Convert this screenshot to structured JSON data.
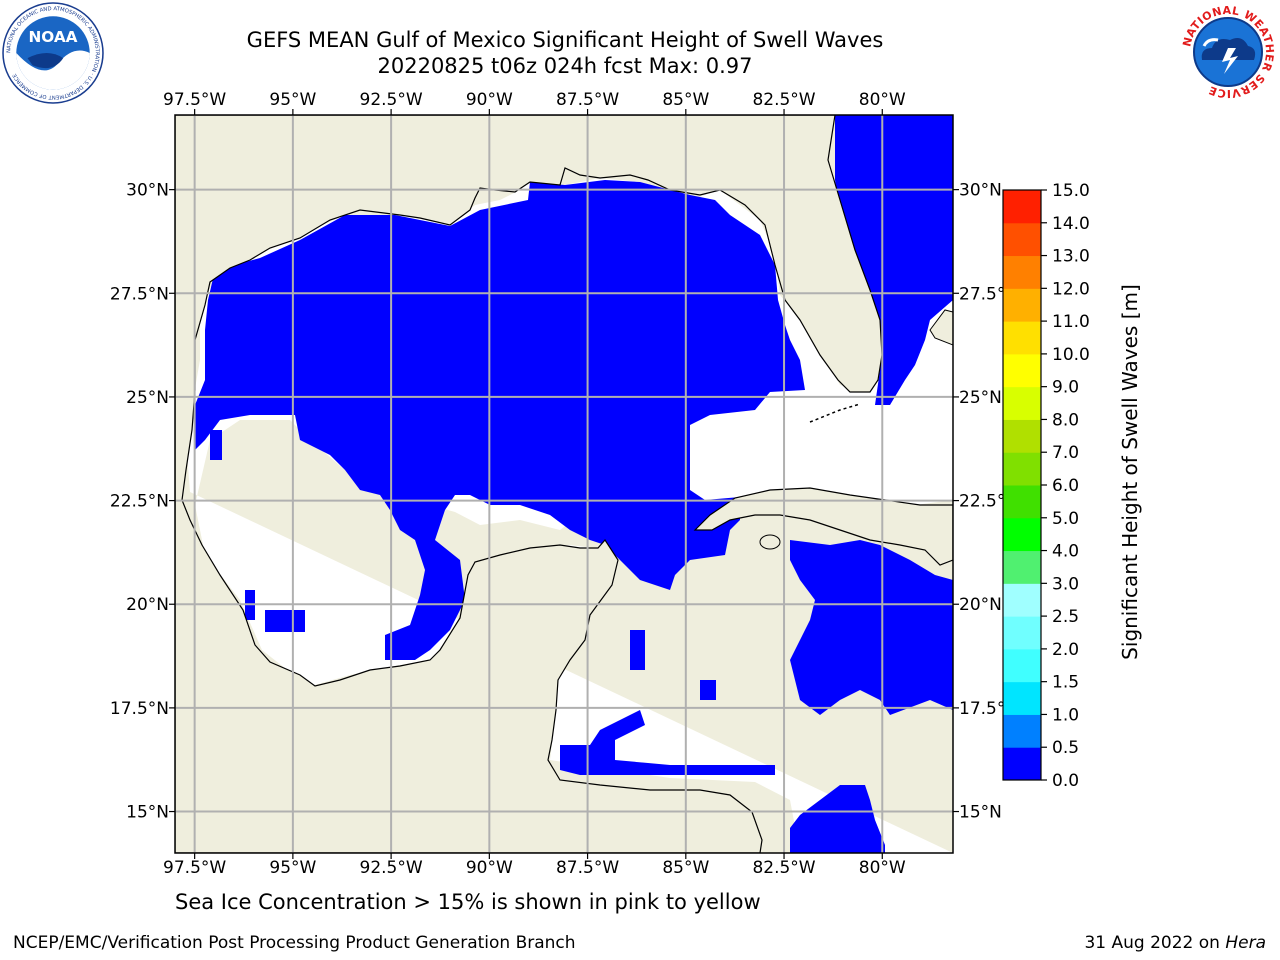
{
  "header": {
    "title": "GEFS MEAN Gulf of Mexico Significant Height of Swell Waves",
    "subtitle": "20220825 t06z 024h fcst   Max: 0.97"
  },
  "logos": {
    "left": "NOAA",
    "left_ring_text": "NATIONAL OCEANIC AND ATMOSPHERIC ADMINISTRATION · U.S. DEPARTMENT OF COMMERCE",
    "right_ring_text": "NATIONAL WEATHER SERVICE"
  },
  "map": {
    "lon_labels": [
      "97.5°W",
      "95°W",
      "92.5°W",
      "90°W",
      "87.5°W",
      "85°W",
      "82.5°W",
      "80°W"
    ],
    "lat_labels": [
      "30°N",
      "27.5°N",
      "25°N",
      "22.5°N",
      "20°N",
      "17.5°N",
      "15°N"
    ],
    "lon_range": [
      -98,
      -78.2
    ],
    "lat_range": [
      14,
      31.8
    ],
    "colors": {
      "land": "#efeedd",
      "sea_low": "#0000ff",
      "sea_mid": "#0080ff",
      "grid": "#b0b0b0"
    }
  },
  "colorbar": {
    "title": "Significant Height of Swell Waves [m]",
    "levels": [
      "0.0",
      "0.5",
      "1.0",
      "1.5",
      "2.0",
      "2.5",
      "3.0",
      "4.0",
      "5.0",
      "6.0",
      "7.0",
      "8.0",
      "9.0",
      "10.0",
      "11.0",
      "12.0",
      "13.0",
      "14.0",
      "15.0"
    ],
    "colors": [
      "#0000ff",
      "#0080ff",
      "#00e5ff",
      "#40ffff",
      "#70ffff",
      "#a0ffff",
      "#50f070",
      "#00ff00",
      "#40e000",
      "#80e000",
      "#b0e000",
      "#d8ff00",
      "#ffff00",
      "#ffe000",
      "#ffb000",
      "#ff8000",
      "#ff5000",
      "#ff2000"
    ]
  },
  "footer": {
    "sea_ice_note": "Sea Ice Concentration > 15% is shown in pink to yellow",
    "left": "NCEP/EMC/Verification Post Processing Product Generation Branch",
    "right_date": "31 Aug 2022 on ",
    "right_host": "Hera"
  }
}
